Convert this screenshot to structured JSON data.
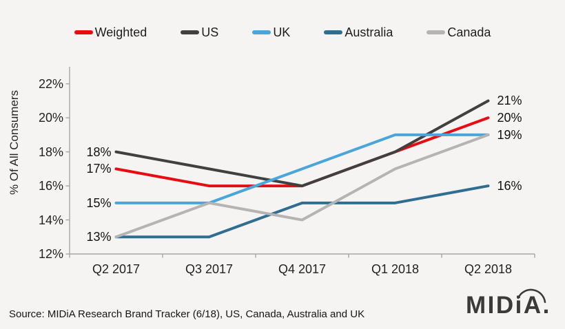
{
  "colors": {
    "background": "#f5f4f2",
    "axis": "#a6a6a6",
    "text": "#1d1d1d"
  },
  "chart_data": {
    "type": "line",
    "title": "",
    "ylabel": "% Of All Consumers",
    "xlabel": "",
    "categories": [
      "Q2 2017",
      "Q3 2017",
      "Q4 2017",
      "Q1 2018",
      "Q2 2018"
    ],
    "series": [
      {
        "name": "Weighted",
        "color": "#e80c12",
        "values": [
          17,
          16,
          16,
          18,
          20
        ]
      },
      {
        "name": "US",
        "color": "#404040",
        "values": [
          18,
          17,
          16,
          18,
          21
        ]
      },
      {
        "name": "UK",
        "color": "#4aa6d9",
        "values": [
          15,
          15,
          17,
          19,
          19
        ]
      },
      {
        "name": "Australia",
        "color": "#2f6e90",
        "values": [
          13,
          13,
          15,
          15,
          16
        ]
      },
      {
        "name": "Canada",
        "color": "#b4b4b4",
        "values": [
          13,
          15,
          14,
          17,
          19
        ]
      }
    ],
    "ylim": [
      12,
      23
    ],
    "yticks": [
      {
        "value": 12,
        "label": "12%"
      },
      {
        "value": 14,
        "label": "14%"
      },
      {
        "value": 16,
        "label": "16%"
      },
      {
        "value": 18,
        "label": "18%"
      },
      {
        "value": 20,
        "label": "20%"
      },
      {
        "value": 22,
        "label": "22%"
      }
    ],
    "grid": false,
    "legend_position": "top",
    "point_labels": [
      {
        "text": "18%",
        "value": 18,
        "side": "left"
      },
      {
        "text": "17%",
        "value": 17,
        "side": "left"
      },
      {
        "text": "15%",
        "value": 15,
        "side": "left"
      },
      {
        "text": "13%",
        "value": 13,
        "side": "left"
      },
      {
        "text": "21%",
        "value": 21,
        "side": "right"
      },
      {
        "text": "20%",
        "value": 20,
        "side": "right"
      },
      {
        "text": "19%",
        "value": 19,
        "side": "right"
      },
      {
        "text": "16%",
        "value": 16,
        "side": "right"
      }
    ]
  },
  "source_note": "Source: MIDiA Research Brand Tracker (6/18), US, Canada, Australia and UK",
  "logo_text": "MIDiA."
}
